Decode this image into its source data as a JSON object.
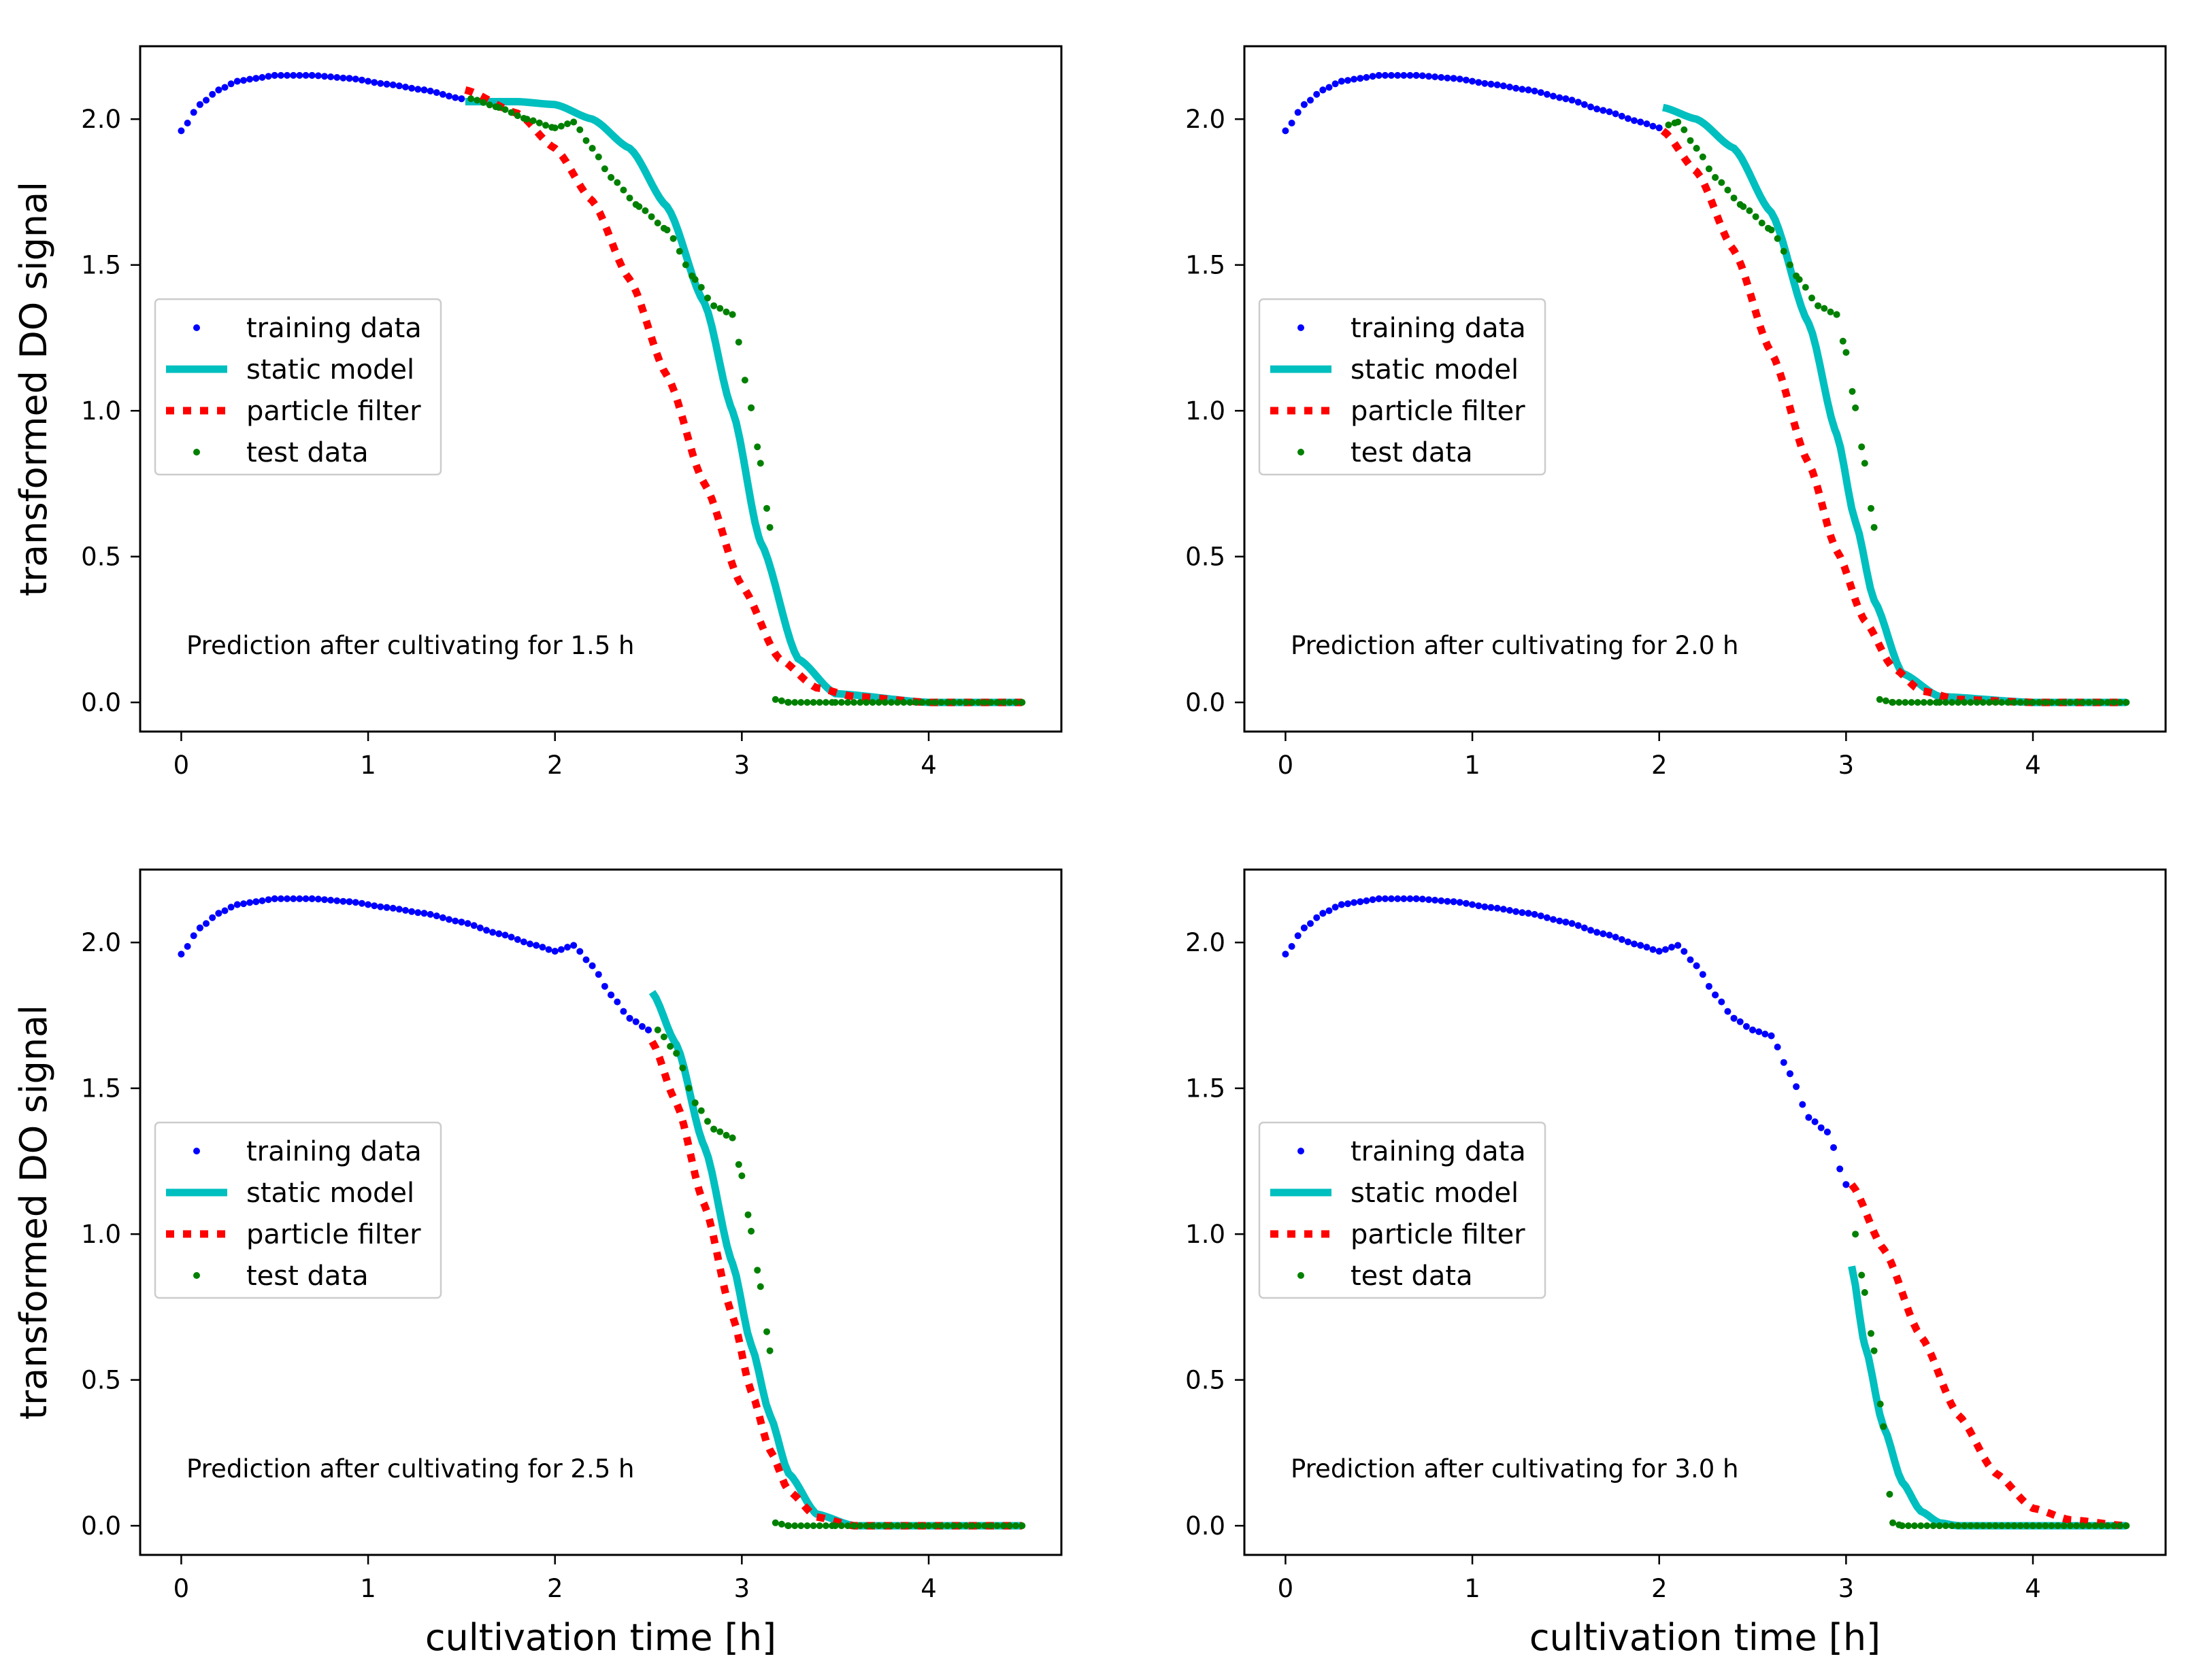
{
  "figure": {
    "layout": "2x2 grid",
    "ylabel": "transformed DO signal",
    "xlabel": "cultivation time [h]",
    "legend_entries": [
      "training data",
      "static model",
      "particle filter",
      "test data"
    ],
    "colors": {
      "training": "#0000ff",
      "static": "#00bfbf",
      "particle": "#ff0000",
      "test": "#008000",
      "axes": "#000000",
      "legend_border": "#cccccc"
    }
  },
  "chart_data": [
    {
      "type": "line",
      "annotation": "Prediction after cultivating for 1.5 h",
      "cutoff": 1.5,
      "xlabel": "",
      "ylabel": "transformed DO signal",
      "xlim": [
        -0.22,
        4.71
      ],
      "ylim": [
        -0.1,
        2.25
      ],
      "xticks": [
        "0",
        "1",
        "2",
        "3",
        "4"
      ],
      "yticks": [
        "0.0",
        "0.5",
        "1.0",
        "1.5",
        "2.0"
      ],
      "legend": "center-left",
      "series": [
        {
          "name": "training data",
          "style": "dots",
          "x": [
            0.0,
            0.1,
            0.2,
            0.3,
            0.4,
            0.5,
            0.7,
            0.9,
            1.1,
            1.3,
            1.5
          ],
          "y": [
            1.96,
            2.05,
            2.1,
            2.13,
            2.14,
            2.15,
            2.15,
            2.14,
            2.12,
            2.1,
            2.07
          ]
        },
        {
          "name": "static model",
          "style": "solid",
          "x": [
            1.52,
            1.8,
            2.0,
            2.2,
            2.4,
            2.6,
            2.8,
            2.95,
            3.1,
            3.3,
            3.5,
            4.0,
            4.5
          ],
          "y": [
            2.06,
            2.06,
            2.05,
            2.0,
            1.9,
            1.7,
            1.37,
            1.0,
            0.55,
            0.15,
            0.03,
            0.0,
            0.0
          ]
        },
        {
          "name": "particle filter",
          "style": "dotted",
          "x": [
            1.52,
            1.8,
            2.0,
            2.2,
            2.4,
            2.6,
            2.8,
            3.0,
            3.2,
            3.4,
            3.6,
            4.0,
            4.5
          ],
          "y": [
            2.1,
            2.02,
            1.9,
            1.72,
            1.45,
            1.12,
            0.75,
            0.4,
            0.15,
            0.05,
            0.02,
            0.0,
            0.0
          ]
        },
        {
          "name": "test data",
          "style": "dots",
          "x": [
            1.55,
            1.7,
            1.85,
            2.0,
            2.1,
            2.2,
            2.3,
            2.45,
            2.6,
            2.75,
            2.85,
            2.95,
            3.05,
            3.1,
            3.15,
            3.18,
            3.25,
            3.5,
            4.0,
            4.5
          ],
          "y": [
            2.07,
            2.04,
            2.0,
            1.97,
            1.99,
            1.9,
            1.8,
            1.7,
            1.62,
            1.45,
            1.36,
            1.33,
            1.01,
            0.82,
            0.6,
            0.01,
            0.0,
            0.0,
            0.0,
            0.0
          ]
        }
      ]
    },
    {
      "type": "line",
      "annotation": "Prediction after cultivating for 2.0 h",
      "cutoff": 2.0,
      "xlabel": "",
      "ylabel": "",
      "xlim": [
        -0.22,
        4.71
      ],
      "ylim": [
        -0.1,
        2.25
      ],
      "xticks": [
        "0",
        "1",
        "2",
        "3",
        "4"
      ],
      "yticks": [
        "0.0",
        "0.5",
        "1.0",
        "1.5",
        "2.0"
      ],
      "legend": "center-left",
      "series": [
        {
          "name": "training data",
          "style": "dots",
          "x": [
            0.0,
            0.1,
            0.2,
            0.3,
            0.4,
            0.5,
            0.7,
            0.9,
            1.1,
            1.3,
            1.5,
            1.7,
            1.9,
            2.0
          ],
          "y": [
            1.96,
            2.05,
            2.1,
            2.13,
            2.14,
            2.15,
            2.15,
            2.14,
            2.12,
            2.1,
            2.07,
            2.03,
            1.99,
            1.97
          ]
        },
        {
          "name": "static model",
          "style": "solid",
          "x": [
            2.02,
            2.2,
            2.4,
            2.6,
            2.8,
            2.95,
            3.05,
            3.15,
            3.3,
            3.5,
            4.0,
            4.5
          ],
          "y": [
            2.04,
            2.0,
            1.9,
            1.68,
            1.3,
            0.92,
            0.62,
            0.35,
            0.1,
            0.02,
            0.0,
            0.0
          ]
        },
        {
          "name": "particle filter",
          "style": "dotted",
          "x": [
            2.02,
            2.2,
            2.4,
            2.6,
            2.8,
            2.95,
            3.1,
            3.25,
            3.4,
            3.6,
            4.0,
            4.5
          ],
          "y": [
            1.96,
            1.82,
            1.55,
            1.2,
            0.82,
            0.52,
            0.28,
            0.12,
            0.04,
            0.01,
            0.0,
            0.0
          ]
        },
        {
          "name": "test data",
          "style": "dots",
          "x": [
            2.05,
            2.1,
            2.2,
            2.3,
            2.45,
            2.6,
            2.75,
            2.85,
            2.95,
            3.0,
            3.05,
            3.1,
            3.15,
            3.18,
            3.25,
            3.5,
            4.0,
            4.5
          ],
          "y": [
            1.98,
            1.99,
            1.9,
            1.8,
            1.7,
            1.62,
            1.45,
            1.36,
            1.33,
            1.2,
            1.01,
            0.82,
            0.6,
            0.01,
            0.0,
            0.0,
            0.0,
            0.0
          ]
        }
      ]
    },
    {
      "type": "line",
      "annotation": "Prediction after cultivating for 2.5 h",
      "cutoff": 2.5,
      "xlabel": "cultivation time [h]",
      "ylabel": "transformed DO signal",
      "xlim": [
        -0.22,
        4.71
      ],
      "ylim": [
        -0.1,
        2.25
      ],
      "xticks": [
        "0",
        "1",
        "2",
        "3",
        "4"
      ],
      "yticks": [
        "0.0",
        "0.5",
        "1.0",
        "1.5",
        "2.0"
      ],
      "legend": "center-left",
      "series": [
        {
          "name": "training data",
          "style": "dots",
          "x": [
            0.0,
            0.1,
            0.2,
            0.3,
            0.4,
            0.5,
            0.7,
            0.9,
            1.1,
            1.3,
            1.5,
            1.7,
            1.9,
            2.0,
            2.1,
            2.2,
            2.3,
            2.4,
            2.5
          ],
          "y": [
            1.96,
            2.05,
            2.1,
            2.13,
            2.14,
            2.15,
            2.15,
            2.14,
            2.12,
            2.1,
            2.07,
            2.03,
            1.99,
            1.97,
            1.99,
            1.92,
            1.82,
            1.74,
            1.7
          ]
        },
        {
          "name": "static model",
          "style": "solid",
          "x": [
            2.52,
            2.65,
            2.8,
            2.95,
            3.05,
            3.15,
            3.25,
            3.4,
            3.6,
            4.0,
            4.5
          ],
          "y": [
            1.83,
            1.65,
            1.3,
            0.9,
            0.62,
            0.38,
            0.18,
            0.04,
            0.0,
            0.0,
            0.0
          ]
        },
        {
          "name": "particle filter",
          "style": "dotted",
          "x": [
            2.52,
            2.65,
            2.8,
            2.95,
            3.05,
            3.15,
            3.25,
            3.4,
            3.6,
            4.0,
            4.5
          ],
          "y": [
            1.66,
            1.45,
            1.1,
            0.72,
            0.46,
            0.26,
            0.12,
            0.03,
            0.0,
            0.0,
            0.0
          ]
        },
        {
          "name": "test data",
          "style": "dots",
          "x": [
            2.55,
            2.65,
            2.75,
            2.85,
            2.95,
            3.0,
            3.05,
            3.1,
            3.15,
            3.18,
            3.25,
            3.5,
            4.0,
            4.5
          ],
          "y": [
            1.7,
            1.62,
            1.45,
            1.36,
            1.33,
            1.2,
            1.01,
            0.82,
            0.6,
            0.01,
            0.0,
            0.0,
            0.0,
            0.0
          ]
        }
      ]
    },
    {
      "type": "line",
      "annotation": "Prediction after cultivating for 3.0 h",
      "cutoff": 3.0,
      "xlabel": "cultivation time [h]",
      "ylabel": "",
      "xlim": [
        -0.22,
        4.71
      ],
      "ylim": [
        -0.1,
        2.25
      ],
      "xticks": [
        "0",
        "1",
        "2",
        "3",
        "4"
      ],
      "yticks": [
        "0.0",
        "0.5",
        "1.0",
        "1.5",
        "2.0"
      ],
      "legend": "center-left",
      "series": [
        {
          "name": "training data",
          "style": "dots",
          "x": [
            0.0,
            0.1,
            0.2,
            0.3,
            0.4,
            0.5,
            0.7,
            0.9,
            1.1,
            1.3,
            1.5,
            1.7,
            1.9,
            2.0,
            2.1,
            2.2,
            2.3,
            2.4,
            2.5,
            2.6,
            2.7,
            2.8,
            2.9,
            3.0
          ],
          "y": [
            1.96,
            2.05,
            2.1,
            2.13,
            2.14,
            2.15,
            2.15,
            2.14,
            2.12,
            2.1,
            2.07,
            2.03,
            1.99,
            1.97,
            1.99,
            1.92,
            1.82,
            1.74,
            1.7,
            1.68,
            1.55,
            1.4,
            1.35,
            1.17
          ]
        },
        {
          "name": "static model",
          "style": "solid",
          "x": [
            3.03,
            3.1,
            3.2,
            3.3,
            3.4,
            3.5,
            3.6,
            4.0,
            4.5
          ],
          "y": [
            0.89,
            0.62,
            0.34,
            0.15,
            0.05,
            0.01,
            0.0,
            0.0,
            0.0
          ]
        },
        {
          "name": "particle filter",
          "style": "dotted",
          "x": [
            3.03,
            3.2,
            3.4,
            3.6,
            3.8,
            4.0,
            4.2,
            4.5
          ],
          "y": [
            1.17,
            0.95,
            0.65,
            0.38,
            0.18,
            0.06,
            0.02,
            0.0
          ]
        },
        {
          "name": "test data",
          "style": "dots",
          "x": [
            3.05,
            3.1,
            3.15,
            3.2,
            3.25,
            3.3,
            3.5,
            4.0,
            4.5
          ],
          "y": [
            1.0,
            0.8,
            0.6,
            0.34,
            0.01,
            0.0,
            0.0,
            0.0,
            0.0
          ]
        }
      ]
    }
  ]
}
